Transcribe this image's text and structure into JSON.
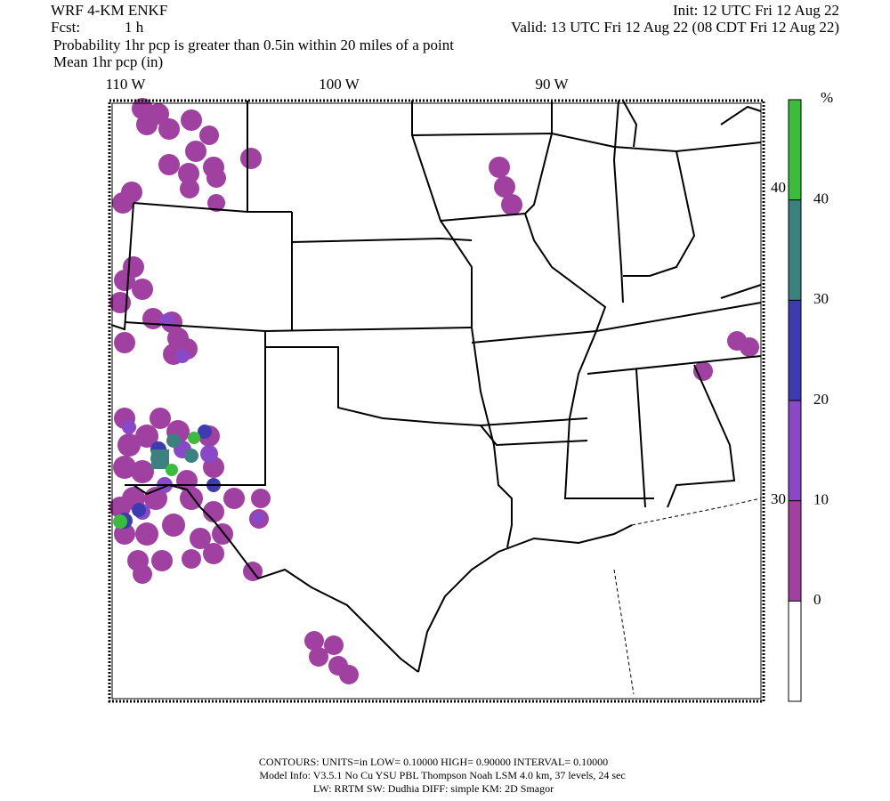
{
  "header": {
    "model": "WRF 4-KM ENKF",
    "init": "Init: 12 UTC Fri 12 Aug 22",
    "fcst_label": "Fcst:",
    "fcst": "1 h",
    "valid": "Valid: 13 UTC Fri 12 Aug 22 (08 CDT Fri 12 Aug 22)",
    "line1": "Probability 1hr pcp is greater than 0.5in within 20 miles of a point",
    "line2": "Mean 1hr pcp (in)"
  },
  "map": {
    "longitude_labels": [
      "110 W",
      "100 W",
      "90 W"
    ],
    "latitude_labels": [
      "40 N",
      "30 N"
    ]
  },
  "colorbar": {
    "unit": "%",
    "ticks": [
      0,
      10,
      20,
      30,
      40
    ],
    "colors": [
      "#ffffff",
      "#a040a0",
      "#8848c8",
      "#3c3cb0",
      "#3c8080",
      "#3cbc3c"
    ]
  },
  "footer": {
    "contours": "CONTOURS:  UNITS=in  LOW= 0.10000     HIGH= 0.90000     INTERVAL= 0.10000",
    "model_info": "Model Info: V3.5.1    No Cu    YSU PBL   Thompson      Noah LSM   4.0 km,   37 levels,     24 sec",
    "physics": "LW: RRTM SW: Dudhia   DIFF: simple KM: 2D Smagor"
  }
}
